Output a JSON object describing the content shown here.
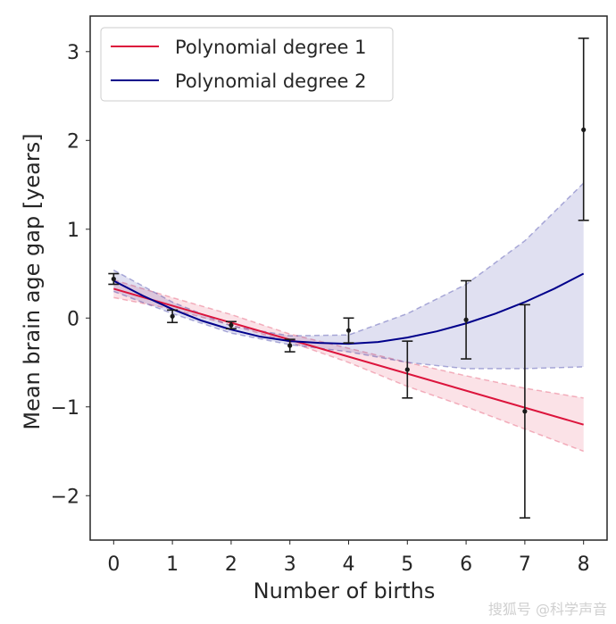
{
  "chart_data": {
    "type": "line",
    "xlabel": "Number of births",
    "ylabel": "Mean brain age gap [years]",
    "xlim": [
      -0.4,
      8.4
    ],
    "ylim": [
      -2.5,
      3.4
    ],
    "xticks": [
      0,
      1,
      2,
      3,
      4,
      5,
      6,
      7,
      8
    ],
    "yticks": [
      -2,
      -1,
      0,
      1,
      2,
      3
    ],
    "ytick_labels": [
      "−2",
      "−1",
      "0",
      "1",
      "2",
      "3"
    ],
    "grid": false,
    "legend_position": "top-left",
    "series": [
      {
        "name": "Polynomial degree 1",
        "color": "#dc143c",
        "x": [
          0,
          8
        ],
        "y": [
          0.33,
          -1.2
        ],
        "ci_x": [
          0,
          1,
          2,
          3,
          4,
          5,
          6,
          7,
          8
        ],
        "ci_lower": [
          0.23,
          0.1,
          -0.08,
          -0.27,
          -0.5,
          -0.77,
          -1.0,
          -1.25,
          -1.5
        ],
        "ci_upper": [
          0.43,
          0.23,
          0.04,
          -0.18,
          -0.34,
          -0.5,
          -0.65,
          -0.79,
          -0.9
        ]
      },
      {
        "name": "Polynomial degree 2",
        "color": "#00008b",
        "x": [
          0,
          0.5,
          1,
          1.5,
          2,
          2.5,
          3,
          3.5,
          4,
          4.5,
          5,
          5.5,
          6,
          6.5,
          7,
          7.5,
          8
        ],
        "y": [
          0.42,
          0.25,
          0.1,
          -0.03,
          -0.13,
          -0.21,
          -0.26,
          -0.28,
          -0.29,
          -0.27,
          -0.22,
          -0.15,
          -0.06,
          0.05,
          0.18,
          0.33,
          0.5
        ],
        "ci_x": [
          0,
          1,
          2,
          3,
          4,
          5,
          6,
          7,
          8
        ],
        "ci_lower": [
          0.3,
          0.05,
          -0.17,
          -0.3,
          -0.38,
          -0.5,
          -0.57,
          -0.57,
          -0.55
        ],
        "ci_upper": [
          0.54,
          0.18,
          -0.09,
          -0.2,
          -0.19,
          0.05,
          0.38,
          0.87,
          1.52
        ]
      }
    ],
    "data_points": {
      "name": "Mean",
      "color": "#1a1a1a",
      "x": [
        0,
        1,
        2,
        3,
        4,
        5,
        6,
        7,
        8
      ],
      "y": [
        0.44,
        0.02,
        -0.08,
        -0.31,
        -0.14,
        -0.58,
        -0.02,
        -1.05,
        2.12
      ],
      "err_lower": [
        0.06,
        0.07,
        0.04,
        0.07,
        0.14,
        0.32,
        0.44,
        1.2,
        1.02
      ],
      "err_upper": [
        0.06,
        0.07,
        0.04,
        0.07,
        0.14,
        0.32,
        0.44,
        1.2,
        1.03
      ]
    }
  },
  "watermark": "搜狐号 @科学声音"
}
